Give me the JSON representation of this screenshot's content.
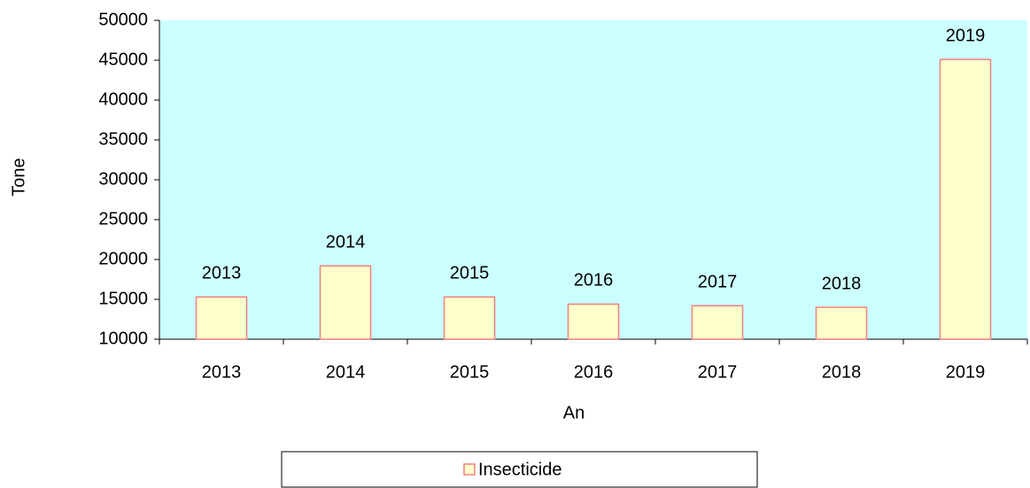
{
  "chart_data": {
    "type": "bar",
    "y_label": "Tone",
    "x_label": "An",
    "categories": [
      "2013",
      "2014",
      "2015",
      "2016",
      "2017",
      "2018",
      "2019"
    ],
    "series": [
      {
        "name": "Insecticide",
        "color": "#ffffcc",
        "edge_color": "#f08080",
        "values": [
          15300,
          19200,
          15300,
          14400,
          14200,
          14000,
          45100
        ]
      }
    ],
    "ylim": [
      10000,
      50000
    ],
    "yticks": [
      10000,
      15000,
      20000,
      25000,
      30000,
      35000,
      40000,
      45000,
      50000
    ],
    "plot_background": "#ccffff",
    "legend": "bottom"
  }
}
